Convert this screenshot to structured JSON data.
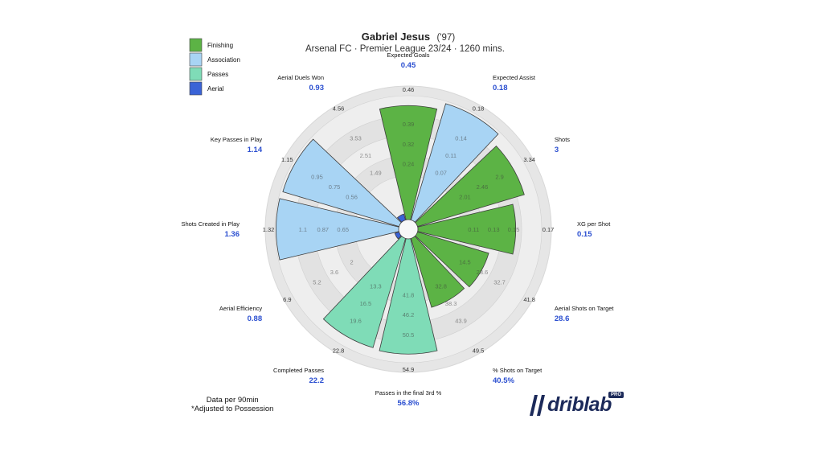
{
  "chart_data": {
    "type": "pizza",
    "title_name": "Gabriel Jesus",
    "title_year": "('97)",
    "subtitle": "Arsenal FC · Premier League 23/24 · 1260 mins.",
    "legend": [
      {
        "label": "Finishing",
        "color": "#5cb345"
      },
      {
        "label": "Association",
        "color": "#a8d4f4"
      },
      {
        "label": "Passes",
        "color": "#7fdcb7"
      },
      {
        "label": "Aerial",
        "color": "#3a63d6"
      }
    ],
    "metrics": [
      {
        "label": "Expected Goals",
        "value": "0.45",
        "group": "Finishing",
        "percentile": 0.92,
        "outer_tick": "0.46",
        "inner_ticks": [
          "0.39",
          "0.32",
          "0.24"
        ]
      },
      {
        "label": "Expected Assist",
        "value": "0.18",
        "group": "Association",
        "percentile": 0.98,
        "outer_tick": "0.18",
        "inner_ticks": [
          "0.14",
          "0.11",
          "0.07"
        ]
      },
      {
        "label": "Shots",
        "value": "3",
        "group": "Finishing",
        "percentile": 0.9,
        "outer_tick": "3.34",
        "inner_ticks": [
          "2.9",
          "2.46",
          "2.01"
        ]
      },
      {
        "label": "XG per Shot",
        "value": "0.15",
        "group": "Finishing",
        "percentile": 0.79,
        "outer_tick": "0.17",
        "inner_ticks": [
          "0.15",
          "0.13",
          "0.11"
        ]
      },
      {
        "label": "Aerial Shots on Target",
        "value": "28.6",
        "group": "Finishing",
        "percentile": 0.6,
        "outer_tick": "41.8",
        "inner_ticks": [
          "32.7",
          "23.6",
          "14.5"
        ]
      },
      {
        "label": "% Shots on Target",
        "value": "40.5%",
        "group": "Finishing",
        "percentile": 0.58,
        "outer_tick": "49.5",
        "inner_ticks": [
          "43.9",
          "38.3",
          "32.8"
        ]
      },
      {
        "label": "Passes in the final 3rd %",
        "value": "56.8%",
        "group": "Passes",
        "percentile": 0.93,
        "outer_tick": "54.9",
        "inner_ticks": [
          "50.5",
          "46.2",
          "41.8"
        ]
      },
      {
        "label": "Completed Passes",
        "value": "22.2",
        "group": "Passes",
        "percentile": 0.92,
        "outer_tick": "22.8",
        "inner_ticks": [
          "19.6",
          "16.5",
          "13.3"
        ]
      },
      {
        "label": "Aerial Efficiency",
        "value": "0.88",
        "group": "Aerial",
        "percentile": 0.0,
        "outer_tick": "6.9",
        "inner_ticks": [
          "5.2",
          "3.6",
          "2"
        ]
      },
      {
        "label": "Shots Created in Play",
        "value": "1.36",
        "group": "Association",
        "percentile": 0.99,
        "outer_tick": "1.32",
        "inner_ticks": [
          "1.1",
          "0.87",
          "0.65"
        ]
      },
      {
        "label": "Key Passes in Play",
        "value": "1.14",
        "group": "Association",
        "percentile": 0.98,
        "outer_tick": "1.15",
        "inner_ticks": [
          "0.95",
          "0.75",
          "0.56"
        ]
      },
      {
        "label": "Aerial Duels Won",
        "value": "0.93",
        "group": "Aerial",
        "percentile": 0.05,
        "outer_tick": "4.56",
        "inner_ticks": [
          "3.53",
          "2.51",
          "1.49"
        ]
      }
    ]
  },
  "footnote": {
    "line1": "Data per 90min",
    "line2": "*Adjusted to Possession"
  },
  "brand": {
    "name": "driblab",
    "badge": "PRO"
  }
}
